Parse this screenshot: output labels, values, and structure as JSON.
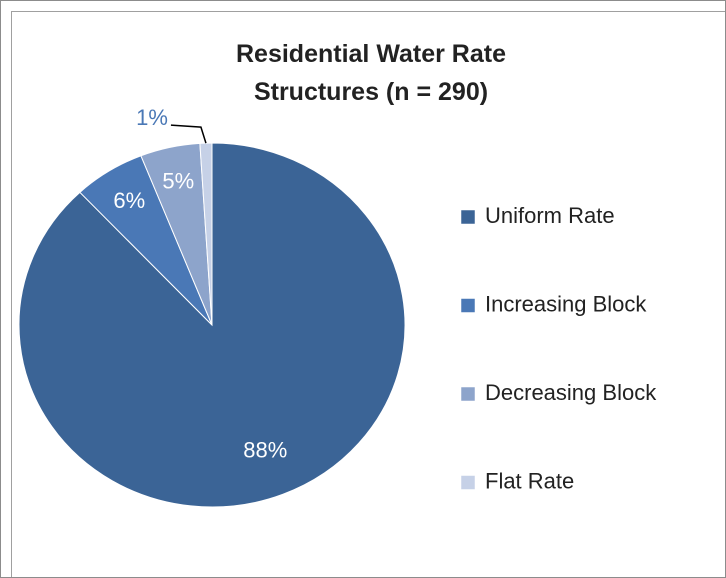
{
  "chart_data": {
    "type": "pie",
    "title": "Residential Water Rate Structures  (n = 290)",
    "categories": [
      "Uniform Rate",
      "Increasing Block",
      "Decreasing Block",
      "Flat Rate"
    ],
    "values": [
      88,
      6,
      5,
      1
    ],
    "value_labels": [
      "88%",
      "6%",
      "5%",
      "1%"
    ],
    "colors": [
      "#3b6496",
      "#4a78b6",
      "#8da4cb",
      "#c6d1e7"
    ],
    "legend": "right"
  }
}
